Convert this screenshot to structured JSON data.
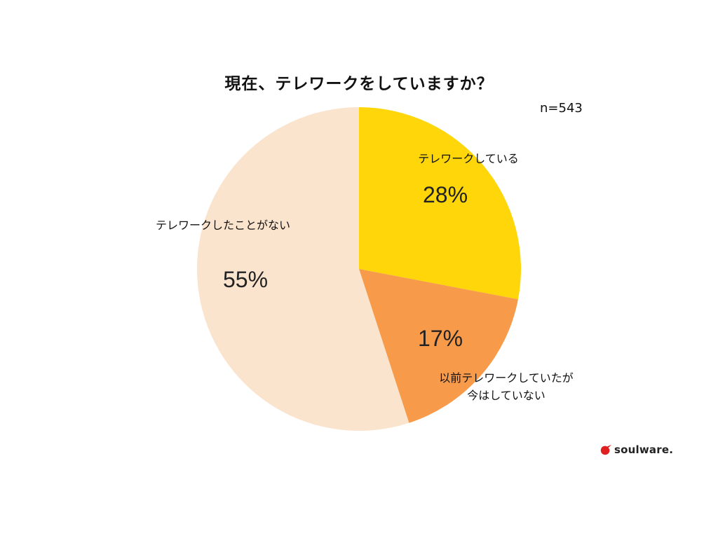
{
  "header": {
    "sample_size": "n=543"
  },
  "chart_data": {
    "type": "pie",
    "title": "現在、テレワークをしていますか？",
    "slices": [
      {
        "label_lines": [
          "テレワークしている"
        ],
        "value": 28,
        "value_label": "28%",
        "color": "#FFD60A"
      },
      {
        "label_lines": [
          "以前テレワークしていたが",
          "今はしていない"
        ],
        "value": 17,
        "value_label": "17%",
        "color": "#F79A4A"
      },
      {
        "label_lines": [
          "テレワークしたことがない"
        ],
        "value": 55,
        "value_label": "55%",
        "color": "#FBE4CD"
      }
    ]
  },
  "brand": {
    "name": "soulware.",
    "mark_color": "#E02020"
  }
}
